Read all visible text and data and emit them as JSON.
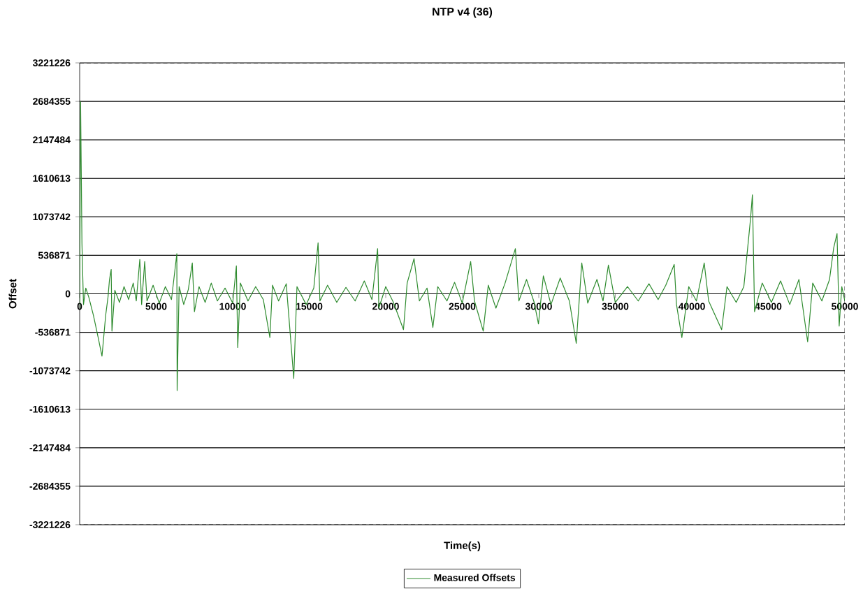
{
  "chart_data": {
    "type": "line",
    "title": "NTP v4 (36)",
    "xlabel": "Time(s)",
    "ylabel": "Offset",
    "xlim": [
      0,
      50000
    ],
    "xticks": [
      0,
      5000,
      10000,
      15000,
      20000,
      25000,
      30000,
      35000,
      40000,
      45000,
      50000
    ],
    "ylim": [
      -3221226,
      3221226
    ],
    "yticks": [
      -3221226,
      -2684355,
      -2147484,
      -1610613,
      -1073742,
      -536871,
      0,
      536871,
      1073742,
      1610613,
      2147484,
      2684355,
      3221226
    ],
    "grid": "y",
    "legend": "bottom",
    "marker": "none",
    "line_style": "solid",
    "series": [
      {
        "name": "Measured Offsets",
        "color": "#2e8b2e",
        "x": [
          0,
          60,
          150,
          250,
          400,
          600,
          900,
          1200,
          1460,
          1700,
          1850,
          1950,
          2060,
          2110,
          2300,
          2600,
          2900,
          3200,
          3500,
          3700,
          3930,
          4050,
          4250,
          4400,
          4800,
          5200,
          5600,
          6000,
          6350,
          6370,
          6500,
          6800,
          7100,
          7360,
          7500,
          7800,
          8200,
          8600,
          9000,
          9500,
          10000,
          10240,
          10330,
          10500,
          11000,
          11500,
          12000,
          12430,
          12600,
          13000,
          13500,
          13990,
          14200,
          14800,
          15300,
          15580,
          15700,
          16200,
          16800,
          17400,
          18000,
          18600,
          19100,
          19470,
          19550,
          20000,
          20500,
          21160,
          21400,
          21850,
          22200,
          22700,
          23080,
          23400,
          24000,
          24500,
          25000,
          25550,
          25800,
          26370,
          26700,
          27200,
          27800,
          28470,
          28700,
          29200,
          29700,
          29980,
          30300,
          30800,
          31400,
          32000,
          32450,
          32810,
          33200,
          33800,
          34200,
          34550,
          35000,
          35800,
          36500,
          37200,
          37800,
          38300,
          38850,
          39000,
          39350,
          39800,
          40300,
          40810,
          41100,
          41950,
          42300,
          42900,
          43400,
          43830,
          43960,
          44100,
          44600,
          45200,
          45800,
          46400,
          47000,
          47570,
          47900,
          48500,
          49000,
          49270,
          49490,
          49630,
          49800,
          50000
        ],
        "values": [
          -200000,
          2680000,
          700000,
          -150000,
          80000,
          -50000,
          -300000,
          -600000,
          -870000,
          -300000,
          -50000,
          200000,
          340000,
          -520000,
          50000,
          -120000,
          100000,
          -80000,
          150000,
          -100000,
          480000,
          -150000,
          450000,
          -100000,
          120000,
          -130000,
          100000,
          -80000,
          560000,
          -1350000,
          100000,
          -150000,
          60000,
          430000,
          -250000,
          100000,
          -120000,
          150000,
          -100000,
          80000,
          -130000,
          390000,
          -750000,
          150000,
          -100000,
          100000,
          -80000,
          -610000,
          120000,
          -100000,
          140000,
          -1180000,
          100000,
          -150000,
          80000,
          710000,
          -100000,
          120000,
          -120000,
          90000,
          -100000,
          180000,
          -80000,
          630000,
          -200000,
          100000,
          -120000,
          -500000,
          150000,
          490000,
          -100000,
          80000,
          -470000,
          100000,
          -100000,
          160000,
          -130000,
          450000,
          -100000,
          -520000,
          120000,
          -200000,
          150000,
          630000,
          -100000,
          200000,
          -120000,
          -420000,
          250000,
          -150000,
          220000,
          -100000,
          -690000,
          430000,
          -130000,
          200000,
          -100000,
          400000,
          -120000,
          100000,
          -100000,
          140000,
          -80000,
          120000,
          410000,
          -150000,
          -610000,
          100000,
          -100000,
          430000,
          -100000,
          -500000,
          100000,
          -120000,
          100000,
          1030000,
          1380000,
          -250000,
          150000,
          -120000,
          180000,
          -150000,
          200000,
          -670000,
          150000,
          -100000,
          200000,
          640000,
          840000,
          -450000,
          100000,
          -100000
        ]
      }
    ]
  }
}
